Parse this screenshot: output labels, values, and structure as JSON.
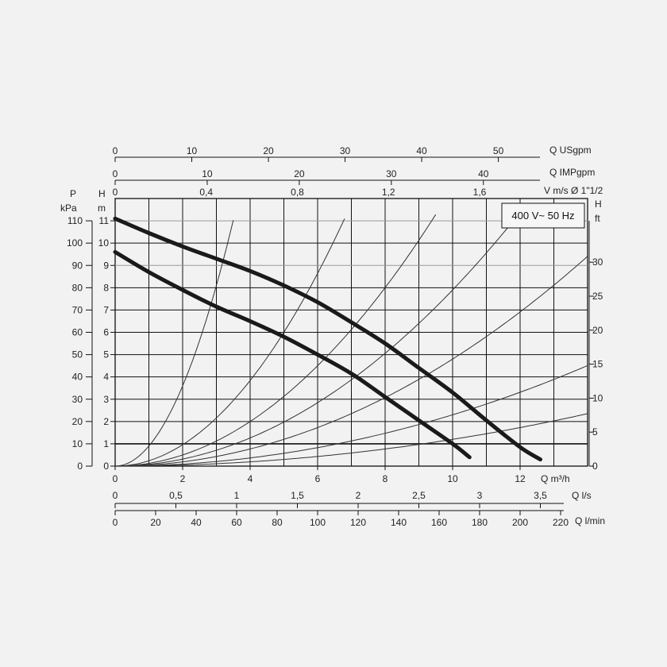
{
  "chart_data": {
    "type": "line",
    "title": "",
    "legend_box": {
      "text": "400 V~ 50 Hz",
      "placement": "top-right"
    },
    "x_axis_primary": {
      "label": "Q m³/h",
      "range": [
        0,
        14
      ],
      "ticks": [
        "0",
        "2",
        "4",
        "6",
        "8",
        "10",
        "12"
      ]
    },
    "y_axis_primary": {
      "label_top": "H",
      "label_unit": "m",
      "range": [
        0,
        12
      ],
      "ticks": [
        "0",
        "1",
        "2",
        "3",
        "4",
        "5",
        "6",
        "7",
        "8",
        "9",
        "10",
        "11"
      ]
    },
    "y_axis_pressure": {
      "label_top": "P",
      "label_unit": "kPa",
      "ticks": [
        "0",
        "10",
        "20",
        "30",
        "40",
        "50",
        "60",
        "70",
        "80",
        "90",
        "100",
        "110"
      ]
    },
    "y_axis_feet": {
      "label_top": "H",
      "label_unit": "ft",
      "ticks": [
        "0",
        "5",
        "10",
        "15",
        "20",
        "25",
        "30"
      ]
    },
    "top_axes": [
      {
        "label": "Q USgpm",
        "ticks": [
          "0",
          "10",
          "20",
          "30",
          "40",
          "50"
        ]
      },
      {
        "label": "Q IMPgpm",
        "ticks": [
          "0",
          "10",
          "20",
          "30",
          "40"
        ]
      },
      {
        "label": "V m/s Ø 1\"1/2",
        "ticks": [
          "0",
          "0,4",
          "0,8",
          "1,2",
          "1,6"
        ]
      }
    ],
    "bottom_axes": [
      {
        "label": "Q l/s",
        "ticks": [
          "0",
          "0,5",
          "1",
          "1,5",
          "2",
          "2,5",
          "3",
          "3,5"
        ]
      },
      {
        "label": "Q l/min",
        "ticks": [
          "0",
          "20",
          "40",
          "60",
          "80",
          "100",
          "120",
          "140",
          "160",
          "180",
          "200",
          "220"
        ]
      }
    ],
    "series": [
      {
        "x": [
          0,
          1,
          2,
          3,
          4,
          5,
          6,
          7,
          8,
          9,
          10,
          11,
          12,
          12.6
        ],
        "y": [
          11.1,
          10.45,
          9.85,
          9.3,
          8.75,
          8.1,
          7.35,
          6.45,
          5.5,
          4.4,
          3.3,
          2.05,
          0.85,
          0.3
        ]
      },
      {
        "x": [
          0,
          1,
          2,
          3,
          4,
          5,
          6,
          7,
          8,
          9,
          10,
          10.5
        ],
        "y": [
          9.6,
          8.7,
          7.9,
          7.15,
          6.5,
          5.8,
          5.0,
          4.15,
          3.1,
          2.05,
          1.0,
          0.4
        ]
      }
    ],
    "system_curves_k": [
      0.9,
      0.24,
      0.125,
      0.079,
      0.048,
      0.023,
      0.012
    ],
    "grid": true
  },
  "colors": {
    "background": "#f2f2f2",
    "grid": "#111111",
    "highlight_grid": "#999999",
    "performance_curve": "#1a1a1a",
    "system_curve": "#333333"
  }
}
